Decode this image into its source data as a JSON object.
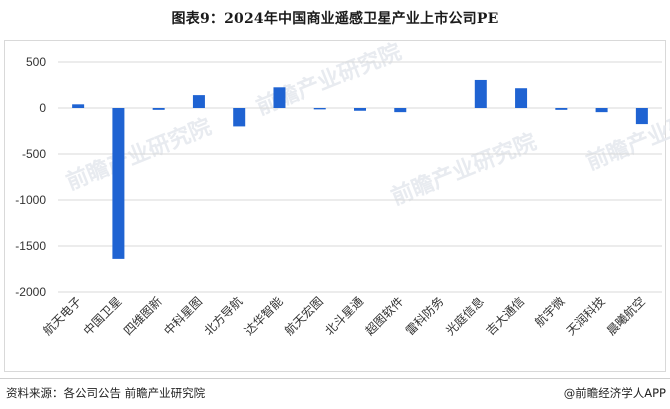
{
  "title": "图表9：2024年中国商业遥感卫星产业上市公司PE",
  "chart_data": {
    "type": "bar",
    "categories": [
      "航天电子",
      "中国卫星",
      "四维图新",
      "中科星图",
      "北方导航",
      "达华智能",
      "航天宏图",
      "北斗星通",
      "超图软件",
      "雷科防务",
      "光庭信息",
      "吉大通信",
      "航宇微",
      "天润科技",
      "晨曦航空"
    ],
    "values": [
      40,
      -1640,
      -20,
      140,
      -200,
      225,
      -15,
      -30,
      -45,
      0,
      305,
      215,
      -20,
      -45,
      -175
    ],
    "ylim": [
      -2000,
      500
    ],
    "yticks": [
      500,
      0,
      -500,
      -1000,
      -1500,
      -2000
    ],
    "ytick_labels": [
      "500",
      "0",
      "-500",
      "-1000",
      "-1500",
      "-2000"
    ],
    "grid": true,
    "bar_color": "#1f63d2"
  },
  "watermark": {
    "text": "前瞻产业研究院"
  },
  "footer": {
    "source": "资料来源：各公司公告 前瞻产业研究院",
    "brand": "@前瞻经济学人APP"
  }
}
